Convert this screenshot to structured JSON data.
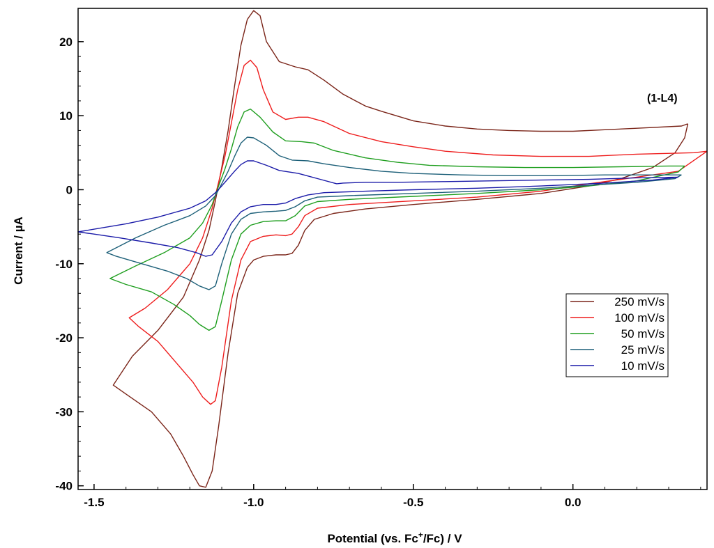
{
  "chart_data": {
    "type": "line",
    "title": "",
    "xlabel_main": "Potential (vs. Fc",
    "xlabel_sup": "+",
    "xlabel_tail": "/Fc) / V",
    "ylabel": "Current / µA",
    "xlim": [
      -1.55,
      0.42
    ],
    "ylim": [
      -40.5,
      24.5
    ],
    "x_ticks": [
      "-1.5",
      "-1.0",
      "-0.5",
      "0.0"
    ],
    "x_tick_values": [
      -1.5,
      -1.0,
      -0.5,
      0.0
    ],
    "y_ticks": [
      "20",
      "10",
      "0",
      "-10",
      "-20",
      "-30",
      "-40"
    ],
    "y_tick_values": [
      20,
      10,
      0,
      -10,
      -20,
      -30,
      -40
    ],
    "grid": false,
    "legend_position": "right",
    "annotation": "(1-L4)",
    "series": [
      {
        "name": "250 mV/s",
        "color": "#7a2418",
        "points": [
          [
            0.36,
            8.9
          ],
          [
            0.34,
            8.6
          ],
          [
            0.2,
            8.3
          ],
          [
            0.1,
            8.1
          ],
          [
            0.0,
            7.9
          ],
          [
            -0.1,
            7.9
          ],
          [
            -0.2,
            8.0
          ],
          [
            -0.3,
            8.2
          ],
          [
            -0.4,
            8.6
          ],
          [
            -0.5,
            9.3
          ],
          [
            -0.6,
            10.6
          ],
          [
            -0.65,
            11.3
          ],
          [
            -0.72,
            12.9
          ],
          [
            -0.78,
            14.8
          ],
          [
            -0.83,
            16.2
          ],
          [
            -0.87,
            16.6
          ],
          [
            -0.92,
            17.3
          ],
          [
            -0.96,
            20.0
          ],
          [
            -0.98,
            23.5
          ],
          [
            -1.0,
            24.2
          ],
          [
            -1.02,
            23.0
          ],
          [
            -1.04,
            19.5
          ],
          [
            -1.06,
            14.0
          ],
          [
            -1.08,
            8.0
          ],
          [
            -1.1,
            3.0
          ],
          [
            -1.12,
            -1.5
          ],
          [
            -1.14,
            -5.5
          ],
          [
            -1.17,
            -9.5
          ],
          [
            -1.22,
            -14.5
          ],
          [
            -1.3,
            -19.0
          ],
          [
            -1.38,
            -22.5
          ],
          [
            -1.44,
            -26.4
          ],
          [
            -1.4,
            -27.6
          ],
          [
            -1.32,
            -30.0
          ],
          [
            -1.26,
            -33.0
          ],
          [
            -1.22,
            -36.0
          ],
          [
            -1.19,
            -38.5
          ],
          [
            -1.17,
            -40.0
          ],
          [
            -1.15,
            -40.2
          ],
          [
            -1.13,
            -38.0
          ],
          [
            -1.11,
            -32.0
          ],
          [
            -1.08,
            -22.0
          ],
          [
            -1.05,
            -14.0
          ],
          [
            -1.02,
            -10.5
          ],
          [
            -1.0,
            -9.5
          ],
          [
            -0.97,
            -9.0
          ],
          [
            -0.93,
            -8.8
          ],
          [
            -0.9,
            -8.8
          ],
          [
            -0.88,
            -8.6
          ],
          [
            -0.86,
            -7.5
          ],
          [
            -0.84,
            -5.5
          ],
          [
            -0.81,
            -4.0
          ],
          [
            -0.75,
            -3.2
          ],
          [
            -0.65,
            -2.6
          ],
          [
            -0.5,
            -2.0
          ],
          [
            -0.3,
            -1.3
          ],
          [
            -0.1,
            -0.5
          ],
          [
            0.05,
            0.5
          ],
          [
            0.15,
            1.5
          ],
          [
            0.25,
            3.0
          ],
          [
            0.32,
            5.0
          ],
          [
            0.35,
            7.0
          ],
          [
            0.36,
            8.9
          ]
        ]
      },
      {
        "name": "100 mV/s",
        "color": "#ee1c1c",
        "points": [
          [
            0.42,
            5.2
          ],
          [
            0.38,
            5.0
          ],
          [
            0.2,
            4.8
          ],
          [
            0.05,
            4.5
          ],
          [
            -0.1,
            4.5
          ],
          [
            -0.25,
            4.7
          ],
          [
            -0.4,
            5.2
          ],
          [
            -0.5,
            5.8
          ],
          [
            -0.6,
            6.5
          ],
          [
            -0.7,
            7.6
          ],
          [
            -0.78,
            9.2
          ],
          [
            -0.83,
            9.8
          ],
          [
            -0.86,
            9.8
          ],
          [
            -0.9,
            9.5
          ],
          [
            -0.94,
            10.5
          ],
          [
            -0.97,
            13.5
          ],
          [
            -0.99,
            16.5
          ],
          [
            -1.01,
            17.5
          ],
          [
            -1.03,
            16.8
          ],
          [
            -1.05,
            13.5
          ],
          [
            -1.07,
            9.0
          ],
          [
            -1.09,
            4.5
          ],
          [
            -1.11,
            1.0
          ],
          [
            -1.13,
            -2.5
          ],
          [
            -1.16,
            -6.5
          ],
          [
            -1.2,
            -10.0
          ],
          [
            -1.27,
            -13.5
          ],
          [
            -1.34,
            -16.0
          ],
          [
            -1.39,
            -17.3
          ],
          [
            -1.36,
            -18.5
          ],
          [
            -1.3,
            -20.5
          ],
          [
            -1.24,
            -23.5
          ],
          [
            -1.19,
            -26.0
          ],
          [
            -1.16,
            -28.0
          ],
          [
            -1.135,
            -29.0
          ],
          [
            -1.12,
            -28.5
          ],
          [
            -1.1,
            -24.0
          ],
          [
            -1.07,
            -15.0
          ],
          [
            -1.04,
            -9.5
          ],
          [
            -1.01,
            -7.0
          ],
          [
            -0.97,
            -6.3
          ],
          [
            -0.93,
            -6.1
          ],
          [
            -0.9,
            -6.2
          ],
          [
            -0.88,
            -6.0
          ],
          [
            -0.86,
            -5.0
          ],
          [
            -0.84,
            -3.5
          ],
          [
            -0.8,
            -2.5
          ],
          [
            -0.7,
            -2.0
          ],
          [
            -0.5,
            -1.5
          ],
          [
            -0.3,
            -1.0
          ],
          [
            -0.1,
            -0.2
          ],
          [
            0.05,
            0.8
          ],
          [
            0.2,
            1.7
          ],
          [
            0.33,
            2.5
          ],
          [
            0.42,
            5.2
          ]
        ]
      },
      {
        "name": "50 mV/s",
        "color": "#1e9e1e",
        "points": [
          [
            0.35,
            3.2
          ],
          [
            0.3,
            3.2
          ],
          [
            0.15,
            3.1
          ],
          [
            0.0,
            3.0
          ],
          [
            -0.15,
            3.0
          ],
          [
            -0.3,
            3.1
          ],
          [
            -0.45,
            3.3
          ],
          [
            -0.55,
            3.7
          ],
          [
            -0.65,
            4.3
          ],
          [
            -0.75,
            5.3
          ],
          [
            -0.81,
            6.3
          ],
          [
            -0.85,
            6.5
          ],
          [
            -0.9,
            6.6
          ],
          [
            -0.94,
            7.8
          ],
          [
            -0.98,
            9.8
          ],
          [
            -1.01,
            10.9
          ],
          [
            -1.03,
            10.5
          ],
          [
            -1.05,
            8.5
          ],
          [
            -1.07,
            5.5
          ],
          [
            -1.09,
            2.8
          ],
          [
            -1.11,
            0.5
          ],
          [
            -1.13,
            -2.0
          ],
          [
            -1.16,
            -4.5
          ],
          [
            -1.2,
            -6.5
          ],
          [
            -1.28,
            -8.5
          ],
          [
            -1.37,
            -10.3
          ],
          [
            -1.45,
            -12.0
          ],
          [
            -1.4,
            -12.8
          ],
          [
            -1.32,
            -13.8
          ],
          [
            -1.25,
            -15.5
          ],
          [
            -1.2,
            -17.0
          ],
          [
            -1.17,
            -18.2
          ],
          [
            -1.14,
            -19.0
          ],
          [
            -1.12,
            -18.5
          ],
          [
            -1.1,
            -15.0
          ],
          [
            -1.07,
            -9.5
          ],
          [
            -1.04,
            -6.0
          ],
          [
            -1.01,
            -4.8
          ],
          [
            -0.97,
            -4.3
          ],
          [
            -0.93,
            -4.2
          ],
          [
            -0.9,
            -4.2
          ],
          [
            -0.87,
            -3.5
          ],
          [
            -0.84,
            -2.2
          ],
          [
            -0.8,
            -1.6
          ],
          [
            -0.7,
            -1.3
          ],
          [
            -0.5,
            -0.9
          ],
          [
            -0.3,
            -0.5
          ],
          [
            -0.1,
            0.0
          ],
          [
            0.05,
            0.5
          ],
          [
            0.2,
            1.2
          ],
          [
            0.33,
            2.4
          ],
          [
            0.35,
            3.2
          ]
        ]
      },
      {
        "name": "25 mV/s",
        "color": "#1c5f78",
        "points": [
          [
            0.34,
            2.0
          ],
          [
            0.25,
            2.0
          ],
          [
            0.1,
            2.0
          ],
          [
            -0.05,
            1.9
          ],
          [
            -0.2,
            1.9
          ],
          [
            -0.35,
            2.0
          ],
          [
            -0.5,
            2.2
          ],
          [
            -0.6,
            2.5
          ],
          [
            -0.7,
            3.0
          ],
          [
            -0.78,
            3.5
          ],
          [
            -0.83,
            3.9
          ],
          [
            -0.88,
            4.0
          ],
          [
            -0.92,
            4.6
          ],
          [
            -0.96,
            6.0
          ],
          [
            -1.0,
            7.0
          ],
          [
            -1.02,
            7.1
          ],
          [
            -1.04,
            6.3
          ],
          [
            -1.06,
            4.5
          ],
          [
            -1.08,
            2.5
          ],
          [
            -1.1,
            0.8
          ],
          [
            -1.12,
            -0.8
          ],
          [
            -1.15,
            -2.2
          ],
          [
            -1.2,
            -3.5
          ],
          [
            -1.28,
            -4.8
          ],
          [
            -1.37,
            -6.5
          ],
          [
            -1.46,
            -8.5
          ],
          [
            -1.43,
            -9.0
          ],
          [
            -1.35,
            -10.0
          ],
          [
            -1.27,
            -11.0
          ],
          [
            -1.21,
            -12.0
          ],
          [
            -1.17,
            -13.0
          ],
          [
            -1.14,
            -13.5
          ],
          [
            -1.12,
            -13.0
          ],
          [
            -1.1,
            -10.0
          ],
          [
            -1.07,
            -6.0
          ],
          [
            -1.04,
            -4.0
          ],
          [
            -1.01,
            -3.2
          ],
          [
            -0.97,
            -3.0
          ],
          [
            -0.93,
            -2.9
          ],
          [
            -0.9,
            -2.8
          ],
          [
            -0.87,
            -2.3
          ],
          [
            -0.84,
            -1.5
          ],
          [
            -0.8,
            -1.0
          ],
          [
            -0.7,
            -0.8
          ],
          [
            -0.5,
            -0.5
          ],
          [
            -0.3,
            -0.2
          ],
          [
            -0.1,
            0.2
          ],
          [
            0.05,
            0.6
          ],
          [
            0.2,
            1.0
          ],
          [
            0.32,
            1.5
          ],
          [
            0.34,
            2.0
          ]
        ]
      },
      {
        "name": "10 mV/s",
        "color": "#1a1aa8",
        "points": [
          [
            0.33,
            1.7
          ],
          [
            0.2,
            1.6
          ],
          [
            0.05,
            1.4
          ],
          [
            -0.1,
            1.3
          ],
          [
            -0.25,
            1.2
          ],
          [
            -0.4,
            1.1
          ],
          [
            -0.55,
            1.0
          ],
          [
            -0.65,
            1.0
          ],
          [
            -0.72,
            0.9
          ],
          [
            -0.74,
            0.8
          ],
          [
            -0.8,
            1.5
          ],
          [
            -0.86,
            2.2
          ],
          [
            -0.92,
            2.6
          ],
          [
            -0.96,
            3.3
          ],
          [
            -1.0,
            3.9
          ],
          [
            -1.02,
            3.9
          ],
          [
            -1.04,
            3.4
          ],
          [
            -1.06,
            2.5
          ],
          [
            -1.08,
            1.5
          ],
          [
            -1.1,
            0.5
          ],
          [
            -1.12,
            -0.4
          ],
          [
            -1.15,
            -1.5
          ],
          [
            -1.2,
            -2.5
          ],
          [
            -1.3,
            -3.7
          ],
          [
            -1.4,
            -4.6
          ],
          [
            -1.55,
            -5.7
          ],
          [
            -1.5,
            -6.0
          ],
          [
            -1.42,
            -6.5
          ],
          [
            -1.32,
            -7.2
          ],
          [
            -1.24,
            -7.8
          ],
          [
            -1.18,
            -8.5
          ],
          [
            -1.15,
            -9.0
          ],
          [
            -1.13,
            -8.8
          ],
          [
            -1.1,
            -7.0
          ],
          [
            -1.07,
            -4.5
          ],
          [
            -1.04,
            -3.0
          ],
          [
            -1.01,
            -2.3
          ],
          [
            -0.97,
            -2.0
          ],
          [
            -0.93,
            -2.0
          ],
          [
            -0.9,
            -1.8
          ],
          [
            -0.87,
            -1.2
          ],
          [
            -0.83,
            -0.7
          ],
          [
            -0.78,
            -0.4
          ],
          [
            -0.65,
            -0.2
          ],
          [
            -0.5,
            0.0
          ],
          [
            -0.3,
            0.2
          ],
          [
            -0.1,
            0.5
          ],
          [
            0.1,
            0.9
          ],
          [
            0.25,
            1.3
          ],
          [
            0.33,
            1.7
          ]
        ]
      }
    ]
  }
}
